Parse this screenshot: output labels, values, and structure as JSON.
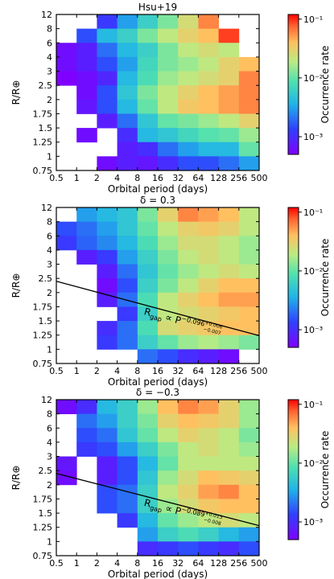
{
  "chart_data": [
    {
      "type": "heatmap",
      "title": "Hsu+19",
      "xlabel": "Orbital period (days)",
      "ylabel": "R/R⊕",
      "colorbar_label": "Occurrence rate",
      "colorbar_ticks": [
        "10⁻¹",
        "10⁻²",
        "10⁻³"
      ],
      "x_ticks": [
        "0.5",
        "1",
        "2",
        "4",
        "8",
        "16",
        "32",
        "64",
        "128",
        "256",
        "500"
      ],
      "y_ticks": [
        "0.75",
        "1",
        "1.25",
        "1.5",
        "1.75",
        "2",
        "2.5",
        "3",
        "4",
        "6",
        "8",
        "12"
      ],
      "color_scale": "log",
      "color_range": [
        0.0005,
        0.12
      ],
      "annotation": null,
      "cells": [
        [
          null,
          null,
          0.0012,
          0.003,
          0.006,
          0.012,
          0.025,
          0.06,
          null,
          null
        ],
        [
          null,
          0.0015,
          0.004,
          0.006,
          0.012,
          0.02,
          0.03,
          0.04,
          0.09,
          null,
          null
        ],
        [
          0.0006,
          0.0008,
          0.002,
          0.004,
          0.006,
          0.012,
          0.02,
          0.025,
          0.02,
          null
        ],
        [
          0.0006,
          0.0008,
          0.0015,
          0.003,
          0.007,
          0.012,
          0.015,
          0.02,
          0.03,
          0.04,
          0.1
        ],
        [
          0.0005,
          0.0006,
          0.0009,
          0.004,
          0.008,
          0.015,
          0.02,
          0.025,
          0.03,
          0.06,
          0.1
        ],
        [
          null,
          0.0006,
          0.0015,
          0.005,
          0.012,
          0.02,
          0.03,
          0.04,
          0.05,
          0.06
        ],
        [
          null,
          0.0007,
          0.0015,
          0.004,
          0.01,
          0.02,
          0.035,
          0.04,
          0.05,
          0.06
        ],
        [
          null,
          null,
          0.0008,
          0.002,
          0.005,
          0.01,
          0.012,
          0.015,
          0.02,
          0.03
        ],
        [
          null,
          0.0006,
          null,
          0.001,
          0.004,
          0.005,
          0.007,
          0.009,
          0.01,
          0.015
        ],
        [
          null,
          null,
          null,
          0.0008,
          0.001,
          0.002,
          0.003,
          0.004,
          0.004,
          0.01
        ],
        [
          null,
          null,
          0.0006,
          0.0008,
          0.0007,
          0.001,
          0.0015,
          0.0015,
          0.002,
          0.003
        ]
      ]
    },
    {
      "type": "heatmap",
      "title": "δ = 0.3",
      "xlabel": "Orbital period (days)",
      "ylabel": "R/R⊕",
      "colorbar_label": "Occurrence rate",
      "colorbar_ticks": [
        "10⁻¹",
        "10⁻²",
        "10⁻³"
      ],
      "x_ticks": [
        "0.5",
        "1",
        "2",
        "4",
        "8",
        "16",
        "32",
        "64",
        "128",
        "256",
        "500"
      ],
      "y_ticks": [
        "0.75",
        "1",
        "1.25",
        "1.5",
        "1.75",
        "2",
        "2.5",
        "3",
        "4",
        "6",
        "8",
        "12"
      ],
      "color_scale": "log",
      "color_range": [
        0.0005,
        0.12
      ],
      "annotation": {
        "text": "R",
        "sub": "gap",
        "mid": " ∝ P",
        "exp": "−0.096",
        "sup_err": "+0.006",
        "sub_err": "−0.007",
        "x0": 0.5,
        "y0": 2.4,
        "x1": 500,
        "y1": 1.24
      },
      "cells": [
        [
          null,
          0.003,
          0.004,
          0.005,
          0.012,
          0.03,
          0.06,
          0.05,
          0.04,
          0.02,
          0.008
        ],
        [
          0.0015,
          0.002,
          0.003,
          0.005,
          0.01,
          0.02,
          0.03,
          0.035,
          0.03,
          0.02,
          0.008
        ],
        [
          0.0012,
          0.0018,
          0.0025,
          0.004,
          0.008,
          0.015,
          0.025,
          0.025,
          0.02,
          0.015,
          0.007
        ],
        [
          null,
          0.0008,
          0.0012,
          0.003,
          0.006,
          0.012,
          0.02,
          0.025,
          0.02,
          0.015,
          0.01
        ],
        [
          null,
          null,
          0.0008,
          0.002,
          0.005,
          0.01,
          0.015,
          0.02,
          0.025,
          0.02,
          0.015
        ],
        [
          null,
          null,
          0.0006,
          0.0015,
          0.006,
          0.012,
          0.02,
          0.03,
          0.04,
          0.04,
          0.025
        ],
        [
          null,
          null,
          0.0008,
          0.002,
          0.008,
          0.02,
          0.03,
          0.04,
          0.05,
          0.05,
          0.03
        ],
        [
          null,
          null,
          null,
          0.0012,
          0.006,
          0.02,
          0.025,
          0.03,
          0.035,
          0.04,
          0.025
        ],
        [
          null,
          null,
          0.001,
          0.002,
          0.008,
          0.025,
          0.03,
          0.035,
          0.04,
          0.04,
          0.025
        ],
        [
          null,
          null,
          0.0012,
          0.002,
          0.006,
          0.01,
          0.015,
          0.018,
          0.015,
          0.012,
          0.01
        ],
        [
          null,
          null,
          null,
          null,
          0.002,
          0.0015,
          0.001,
          0.0008,
          0.0006,
          null,
          null
        ]
      ]
    },
    {
      "type": "heatmap",
      "title": "δ = −0.3",
      "xlabel": "Orbital period (days)",
      "ylabel": "R/R⊕",
      "colorbar_label": "Occurrence rate",
      "colorbar_ticks": [
        "10⁻¹",
        "10⁻²",
        "10⁻³"
      ],
      "x_ticks": [
        "0.5",
        "1",
        "2",
        "4",
        "8",
        "16",
        "32",
        "64",
        "128",
        "256",
        "500"
      ],
      "y_ticks": [
        "0.75",
        "1",
        "1.25",
        "1.5",
        "1.75",
        "2",
        "2.5",
        "3",
        "4",
        "6",
        "8",
        "12"
      ],
      "color_scale": "log",
      "color_range": [
        0.0005,
        0.12
      ],
      "annotation": {
        "text": "R",
        "sub": "gap",
        "mid": " ∝ P",
        "exp": "−0.089",
        "sup_err": "+0.013",
        "sub_err": "−0.008",
        "x0": 0.5,
        "y0": 2.4,
        "x1": 500,
        "y1": 1.28
      },
      "cells": [
        [
          0.0006,
          0.001,
          0.004,
          0.006,
          0.015,
          0.04,
          0.06,
          0.05,
          0.03,
          0.015,
          0.008
        ],
        [
          null,
          0.002,
          0.003,
          0.006,
          0.012,
          0.03,
          0.04,
          0.035,
          0.03,
          0.015,
          0.008
        ],
        [
          null,
          0.0015,
          0.002,
          0.005,
          0.01,
          0.02,
          0.03,
          0.025,
          0.02,
          0.012,
          0.008
        ],
        [
          null,
          0.0012,
          0.0015,
          0.003,
          0.006,
          0.012,
          0.02,
          0.025,
          0.02,
          0.015,
          0.01
        ],
        [
          0.0007,
          null,
          0.0008,
          0.0015,
          0.004,
          0.01,
          0.02,
          0.02,
          0.02,
          0.02,
          0.015
        ],
        [
          0.0006,
          null,
          0.0008,
          0.0015,
          0.005,
          0.015,
          0.025,
          0.04,
          0.035,
          0.03,
          0.02
        ],
        [
          null,
          null,
          0.0015,
          0.002,
          0.006,
          0.02,
          0.03,
          0.05,
          0.06,
          0.04,
          0.025
        ],
        [
          null,
          null,
          0.0015,
          0.002,
          0.006,
          0.015,
          0.025,
          0.035,
          0.04,
          0.04,
          0.02
        ],
        [
          null,
          null,
          null,
          0.0012,
          0.004,
          0.01,
          0.015,
          0.02,
          0.025,
          0.02,
          0.012
        ],
        [
          null,
          null,
          null,
          null,
          0.003,
          0.006,
          0.008,
          0.006,
          0.004,
          0.003,
          0.003
        ],
        [
          null,
          null,
          null,
          null,
          0.001,
          0.0012,
          0.0015,
          0.0012,
          0.001,
          0.0015,
          null
        ]
      ]
    }
  ]
}
